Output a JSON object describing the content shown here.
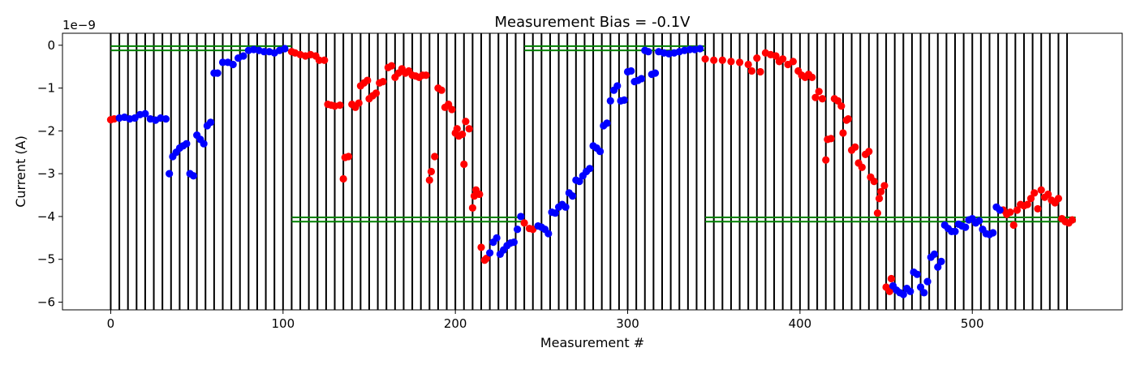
{
  "chart_data": {
    "type": "scatter",
    "title": "Measurement Bias = -0.1V",
    "xlabel": "Measurement #",
    "ylabel": "Current (A)",
    "y_offset_label": "1e−9",
    "y_scale": 1e-09,
    "xlim": [
      -28,
      587
    ],
    "ylim": [
      -6.18,
      0.28
    ],
    "xticks": [
      0,
      100,
      200,
      300,
      400,
      500
    ],
    "yticks": [
      0,
      -1,
      -2,
      -3,
      -4,
      -5,
      -6
    ],
    "ytick_labels": [
      "0",
      "−1",
      "−2",
      "−3",
      "−4",
      "−5",
      "−6"
    ],
    "grid": false,
    "legend": "none",
    "colors": {
      "vertical_lines": "#000000",
      "reference_bands": "#008000",
      "series_red": "#ff0000",
      "series_blue": "#0000ff"
    },
    "vertical_lines_x": [
      0,
      5,
      10,
      15,
      20,
      25,
      30,
      35,
      40,
      45,
      50,
      55,
      60,
      65,
      70,
      75,
      80,
      85,
      90,
      95,
      100,
      105,
      110,
      115,
      120,
      125,
      130,
      135,
      140,
      145,
      150,
      155,
      160,
      165,
      170,
      175,
      180,
      185,
      190,
      195,
      200,
      205,
      210,
      215,
      220,
      225,
      230,
      235,
      240,
      245,
      250,
      255,
      260,
      265,
      270,
      275,
      280,
      285,
      290,
      295,
      300,
      305,
      310,
      315,
      320,
      325,
      330,
      335,
      340,
      345,
      350,
      355,
      360,
      365,
      370,
      375,
      380,
      385,
      390,
      395,
      400,
      405,
      410,
      415,
      420,
      425,
      430,
      435,
      440,
      445,
      450,
      455,
      460,
      465,
      470,
      475,
      480,
      485,
      490,
      495,
      500,
      505,
      510,
      515,
      520,
      525,
      530,
      535,
      540,
      545,
      550,
      555
    ],
    "reference_bands": [
      {
        "x": [
          0,
          105
        ],
        "y": [
          -0.02,
          -0.12
        ]
      },
      {
        "x": [
          105,
          240
        ],
        "y": [
          -4.02,
          -4.12
        ]
      },
      {
        "x": [
          240,
          345
        ],
        "y": [
          -0.02,
          -0.12
        ]
      },
      {
        "x": [
          345,
          560
        ],
        "y": [
          -4.02,
          -4.12
        ]
      }
    ],
    "series": [
      {
        "color": "red",
        "points": [
          [
            0,
            -1.74
          ],
          [
            2,
            -1.72
          ],
          [
            105,
            -0.15
          ],
          [
            107,
            -0.18
          ],
          [
            110,
            -0.22
          ],
          [
            113,
            -0.25
          ],
          [
            116,
            -0.22
          ],
          [
            119,
            -0.25
          ],
          [
            121,
            -0.35
          ],
          [
            124,
            -0.35
          ],
          [
            126,
            -1.38
          ],
          [
            128,
            -1.4
          ],
          [
            130,
            -1.42
          ],
          [
            133,
            -1.4
          ],
          [
            135,
            -3.12
          ],
          [
            136,
            -2.62
          ],
          [
            138,
            -2.6
          ],
          [
            140,
            -1.38
          ],
          [
            142,
            -1.45
          ],
          [
            144,
            -1.35
          ],
          [
            145,
            -0.95
          ],
          [
            147,
            -0.88
          ],
          [
            149,
            -0.82
          ],
          [
            150,
            -1.25
          ],
          [
            152,
            -1.18
          ],
          [
            154,
            -1.12
          ],
          [
            156,
            -0.88
          ],
          [
            158,
            -0.85
          ],
          [
            161,
            -0.52
          ],
          [
            163,
            -0.48
          ],
          [
            165,
            -0.75
          ],
          [
            167,
            -0.65
          ],
          [
            169,
            -0.55
          ],
          [
            171,
            -0.65
          ],
          [
            173,
            -0.6
          ],
          [
            175,
            -0.7
          ],
          [
            177,
            -0.72
          ],
          [
            179,
            -0.75
          ],
          [
            181,
            -0.7
          ],
          [
            183,
            -0.7
          ],
          [
            185,
            -3.15
          ],
          [
            186,
            -2.95
          ],
          [
            188,
            -2.6
          ],
          [
            190,
            -1.0
          ],
          [
            192,
            -1.05
          ],
          [
            194,
            -1.45
          ],
          [
            196,
            -1.38
          ],
          [
            198,
            -1.5
          ],
          [
            200,
            -2.05
          ],
          [
            201,
            -1.95
          ],
          [
            202,
            -2.12
          ],
          [
            204,
            -2.08
          ],
          [
            205,
            -2.78
          ],
          [
            206,
            -1.78
          ],
          [
            208,
            -1.95
          ],
          [
            210,
            -3.8
          ],
          [
            211,
            -3.52
          ],
          [
            212,
            -3.38
          ],
          [
            214,
            -3.48
          ],
          [
            215,
            -4.72
          ],
          [
            217,
            -5.02
          ],
          [
            218,
            -4.98
          ],
          [
            240,
            -4.15
          ],
          [
            243,
            -4.28
          ],
          [
            245,
            -4.3
          ],
          [
            345,
            -0.32
          ],
          [
            350,
            -0.35
          ],
          [
            355,
            -0.35
          ],
          [
            360,
            -0.38
          ],
          [
            365,
            -0.4
          ],
          [
            370,
            -0.45
          ],
          [
            372,
            -0.6
          ],
          [
            375,
            -0.3
          ],
          [
            377,
            -0.62
          ],
          [
            380,
            -0.18
          ],
          [
            383,
            -0.22
          ],
          [
            386,
            -0.25
          ],
          [
            388,
            -0.38
          ],
          [
            390,
            -0.32
          ],
          [
            393,
            -0.45
          ],
          [
            396,
            -0.38
          ],
          [
            399,
            -0.6
          ],
          [
            401,
            -0.7
          ],
          [
            403,
            -0.75
          ],
          [
            405,
            -0.68
          ],
          [
            407,
            -0.75
          ],
          [
            409,
            -1.22
          ],
          [
            411,
            -1.08
          ],
          [
            413,
            -1.25
          ],
          [
            415,
            -2.68
          ],
          [
            416,
            -2.2
          ],
          [
            418,
            -2.18
          ],
          [
            420,
            -1.25
          ],
          [
            422,
            -1.3
          ],
          [
            424,
            -1.42
          ],
          [
            425,
            -2.05
          ],
          [
            427,
            -1.75
          ],
          [
            428,
            -1.72
          ],
          [
            430,
            -2.45
          ],
          [
            432,
            -2.38
          ],
          [
            434,
            -2.75
          ],
          [
            436,
            -2.85
          ],
          [
            438,
            -2.55
          ],
          [
            440,
            -2.48
          ],
          [
            441,
            -3.08
          ],
          [
            443,
            -3.18
          ],
          [
            445,
            -3.92
          ],
          [
            446,
            -3.58
          ],
          [
            447,
            -3.42
          ],
          [
            449,
            -3.28
          ],
          [
            450,
            -5.65
          ],
          [
            452,
            -5.75
          ],
          [
            453,
            -5.45
          ],
          [
            518,
            -3.85
          ],
          [
            520,
            -3.95
          ],
          [
            522,
            -3.9
          ],
          [
            524,
            -4.2
          ],
          [
            526,
            -3.85
          ],
          [
            528,
            -3.72
          ],
          [
            530,
            -3.75
          ],
          [
            532,
            -3.72
          ],
          [
            534,
            -3.58
          ],
          [
            536,
            -3.45
          ],
          [
            538,
            -3.82
          ],
          [
            540,
            -3.38
          ],
          [
            542,
            -3.55
          ],
          [
            544,
            -3.48
          ],
          [
            546,
            -3.62
          ],
          [
            548,
            -3.68
          ],
          [
            550,
            -3.58
          ],
          [
            552,
            -4.05
          ],
          [
            554,
            -4.12
          ],
          [
            556,
            -4.15
          ],
          [
            558,
            -4.08
          ]
        ]
      },
      {
        "color": "blue",
        "points": [
          [
            5,
            -1.7
          ],
          [
            8,
            -1.68
          ],
          [
            11,
            -1.72
          ],
          [
            14,
            -1.7
          ],
          [
            17,
            -1.62
          ],
          [
            20,
            -1.6
          ],
          [
            23,
            -1.72
          ],
          [
            26,
            -1.75
          ],
          [
            29,
            -1.7
          ],
          [
            32,
            -1.72
          ],
          [
            34,
            -3.0
          ],
          [
            36,
            -2.6
          ],
          [
            38,
            -2.5
          ],
          [
            40,
            -2.4
          ],
          [
            42,
            -2.35
          ],
          [
            44,
            -2.3
          ],
          [
            46,
            -3.0
          ],
          [
            48,
            -3.05
          ],
          [
            50,
            -2.1
          ],
          [
            52,
            -2.2
          ],
          [
            54,
            -2.3
          ],
          [
            56,
            -1.88
          ],
          [
            58,
            -1.8
          ],
          [
            60,
            -0.65
          ],
          [
            62,
            -0.65
          ],
          [
            65,
            -0.4
          ],
          [
            68,
            -0.4
          ],
          [
            71,
            -0.45
          ],
          [
            74,
            -0.3
          ],
          [
            77,
            -0.25
          ],
          [
            80,
            -0.12
          ],
          [
            83,
            -0.1
          ],
          [
            86,
            -0.12
          ],
          [
            89,
            -0.15
          ],
          [
            92,
            -0.15
          ],
          [
            95,
            -0.18
          ],
          [
            98,
            -0.12
          ],
          [
            101,
            -0.08
          ],
          [
            220,
            -4.85
          ],
          [
            222,
            -4.6
          ],
          [
            224,
            -4.5
          ],
          [
            226,
            -4.88
          ],
          [
            228,
            -4.78
          ],
          [
            230,
            -4.68
          ],
          [
            232,
            -4.62
          ],
          [
            234,
            -4.6
          ],
          [
            236,
            -4.3
          ],
          [
            238,
            -4.0
          ],
          [
            248,
            -4.22
          ],
          [
            250,
            -4.25
          ],
          [
            252,
            -4.3
          ],
          [
            254,
            -4.4
          ],
          [
            256,
            -3.9
          ],
          [
            258,
            -3.92
          ],
          [
            260,
            -3.78
          ],
          [
            262,
            -3.72
          ],
          [
            264,
            -3.78
          ],
          [
            266,
            -3.45
          ],
          [
            268,
            -3.52
          ],
          [
            270,
            -3.15
          ],
          [
            272,
            -3.18
          ],
          [
            274,
            -3.05
          ],
          [
            276,
            -2.95
          ],
          [
            278,
            -2.88
          ],
          [
            280,
            -2.35
          ],
          [
            282,
            -2.4
          ],
          [
            284,
            -2.48
          ],
          [
            286,
            -1.88
          ],
          [
            288,
            -1.82
          ],
          [
            290,
            -1.3
          ],
          [
            292,
            -1.05
          ],
          [
            294,
            -0.95
          ],
          [
            296,
            -1.3
          ],
          [
            298,
            -1.28
          ],
          [
            300,
            -0.62
          ],
          [
            302,
            -0.6
          ],
          [
            304,
            -0.85
          ],
          [
            306,
            -0.82
          ],
          [
            308,
            -0.78
          ],
          [
            310,
            -0.12
          ],
          [
            312,
            -0.15
          ],
          [
            314,
            -0.68
          ],
          [
            316,
            -0.65
          ],
          [
            318,
            -0.15
          ],
          [
            321,
            -0.18
          ],
          [
            324,
            -0.2
          ],
          [
            327,
            -0.18
          ],
          [
            330,
            -0.15
          ],
          [
            333,
            -0.12
          ],
          [
            336,
            -0.1
          ],
          [
            339,
            -0.1
          ],
          [
            342,
            -0.08
          ],
          [
            454,
            -5.62
          ],
          [
            456,
            -5.72
          ],
          [
            458,
            -5.78
          ],
          [
            460,
            -5.82
          ],
          [
            462,
            -5.68
          ],
          [
            464,
            -5.75
          ],
          [
            466,
            -5.3
          ],
          [
            468,
            -5.35
          ],
          [
            470,
            -5.65
          ],
          [
            472,
            -5.78
          ],
          [
            474,
            -5.52
          ],
          [
            476,
            -4.95
          ],
          [
            478,
            -4.88
          ],
          [
            480,
            -5.18
          ],
          [
            482,
            -5.05
          ],
          [
            484,
            -4.2
          ],
          [
            486,
            -4.28
          ],
          [
            488,
            -4.35
          ],
          [
            490,
            -4.35
          ],
          [
            492,
            -4.18
          ],
          [
            494,
            -4.22
          ],
          [
            496,
            -4.25
          ],
          [
            498,
            -4.08
          ],
          [
            500,
            -4.05
          ],
          [
            502,
            -4.15
          ],
          [
            504,
            -4.1
          ],
          [
            506,
            -4.3
          ],
          [
            508,
            -4.4
          ],
          [
            510,
            -4.42
          ],
          [
            512,
            -4.38
          ],
          [
            514,
            -3.78
          ],
          [
            516,
            -3.85
          ]
        ]
      }
    ]
  }
}
